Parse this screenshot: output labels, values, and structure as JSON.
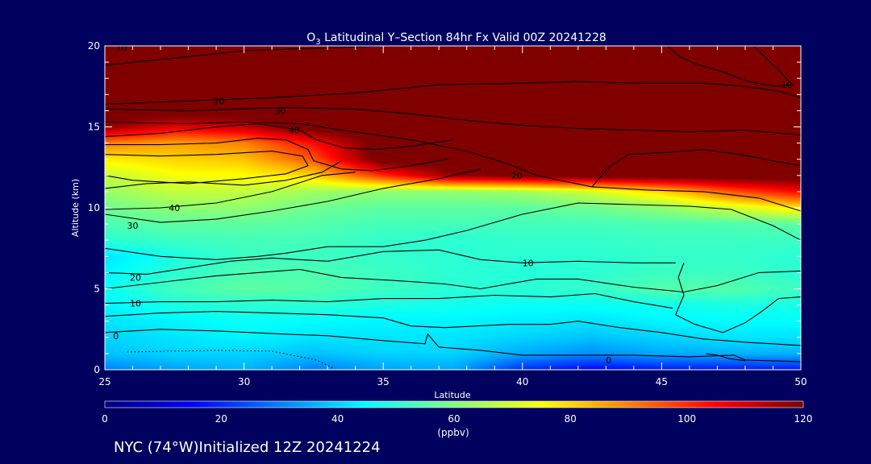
{
  "title": {
    "species": "O",
    "subscript": "3",
    "rest": " Latitudinal Y–Section 84hr  Fx Valid 00Z 20241228"
  },
  "footer": "NYC (74°W)Initialized 12Z 20241224",
  "colorbar": {
    "unit_label": "(ppbv)",
    "ticks": [
      "0",
      "20",
      "40",
      "60",
      "80",
      "100",
      "120"
    ],
    "min": 0,
    "max": 120
  },
  "chart_data": {
    "type": "heatmap",
    "title": "O3 Latitudinal Y–Section 84hr  Fx Valid 00Z 20241228",
    "xlabel": "Latitude",
    "ylabel": "Altitude (km)",
    "xlim": [
      25,
      50
    ],
    "ylim": [
      0,
      20
    ],
    "x_ticks": [
      "25",
      "30",
      "35",
      "40",
      "45",
      "50"
    ],
    "y_ticks": [
      "0",
      "5",
      "10",
      "15",
      "20"
    ],
    "units": "ppbv",
    "colorscale": "jet",
    "lat": [
      25,
      27.5,
      30,
      32.5,
      35,
      37.5,
      40,
      42.5,
      45,
      47.5,
      50
    ],
    "alt": [
      0,
      1,
      2,
      3,
      4,
      5,
      6,
      7,
      8,
      9,
      10,
      11,
      12,
      13,
      14,
      15,
      16,
      17,
      18,
      19,
      20
    ],
    "values": [
      [
        30,
        34,
        36,
        30,
        34,
        35,
        20,
        15,
        18,
        18,
        18
      ],
      [
        38,
        40,
        40,
        38,
        40,
        40,
        35,
        32,
        35,
        36,
        36
      ],
      [
        40,
        42,
        44,
        42,
        42,
        42,
        40,
        38,
        40,
        42,
        42
      ],
      [
        42,
        44,
        46,
        45,
        44,
        44,
        43,
        42,
        44,
        45,
        45
      ],
      [
        44,
        48,
        50,
        50,
        48,
        47,
        46,
        46,
        47,
        48,
        48
      ],
      [
        46,
        53,
        56,
        55,
        52,
        50,
        50,
        51,
        55,
        55,
        52
      ],
      [
        44,
        50,
        54,
        54,
        52,
        50,
        49,
        50,
        52,
        52,
        50
      ],
      [
        42,
        48,
        52,
        52,
        51,
        50,
        50,
        50,
        51,
        51,
        50
      ],
      [
        50,
        52,
        53,
        53,
        51,
        50,
        51,
        51,
        52,
        52,
        52
      ],
      [
        54,
        56,
        56,
        55,
        53,
        53,
        53,
        53,
        54,
        54,
        56
      ],
      [
        58,
        62,
        62,
        58,
        56,
        56,
        56,
        58,
        62,
        70,
        78
      ],
      [
        63,
        68,
        68,
        64,
        62,
        62,
        64,
        70,
        80,
        95,
        105
      ],
      [
        68,
        74,
        75,
        80,
        100,
        118,
        122,
        125,
        125,
        125,
        125
      ],
      [
        77,
        80,
        82,
        95,
        125,
        125,
        125,
        125,
        125,
        125,
        125
      ],
      [
        90,
        86,
        90,
        104,
        125,
        125,
        125,
        125,
        125,
        125,
        125
      ],
      [
        118,
        108,
        112,
        125,
        125,
        125,
        125,
        125,
        125,
        125,
        125
      ],
      [
        125,
        125,
        125,
        125,
        125,
        125,
        125,
        125,
        125,
        125,
        125
      ],
      [
        125,
        125,
        125,
        125,
        125,
        125,
        125,
        125,
        125,
        125,
        125
      ],
      [
        125,
        125,
        125,
        125,
        125,
        125,
        125,
        125,
        125,
        125,
        125
      ],
      [
        125,
        125,
        125,
        125,
        125,
        125,
        125,
        125,
        125,
        125,
        125
      ],
      [
        125,
        125,
        125,
        125,
        125,
        125,
        125,
        125,
        125,
        125,
        125
      ]
    ],
    "contour_labels": [
      {
        "text": "10",
        "lat": 25.6,
        "alt": 19.9
      },
      {
        "text": "10",
        "lat": 49.5,
        "alt": 17.6
      },
      {
        "text": "20",
        "lat": 29.1,
        "alt": 16.6
      },
      {
        "text": "30",
        "lat": 31.3,
        "alt": 16.0
      },
      {
        "text": "40",
        "lat": 31.8,
        "alt": 14.8
      },
      {
        "text": "20",
        "lat": 39.8,
        "alt": 12.0
      },
      {
        "text": "40",
        "lat": 27.5,
        "alt": 10.0
      },
      {
        "text": "30",
        "lat": 26.0,
        "alt": 8.9
      },
      {
        "text": "20",
        "lat": 26.1,
        "alt": 5.7
      },
      {
        "text": "10",
        "lat": 40.2,
        "alt": 6.6
      },
      {
        "text": "10",
        "lat": 26.1,
        "alt": 4.1
      },
      {
        "text": "0",
        "lat": 25.4,
        "alt": 2.1
      },
      {
        "text": "0",
        "lat": 43.1,
        "alt": 0.6
      }
    ]
  }
}
